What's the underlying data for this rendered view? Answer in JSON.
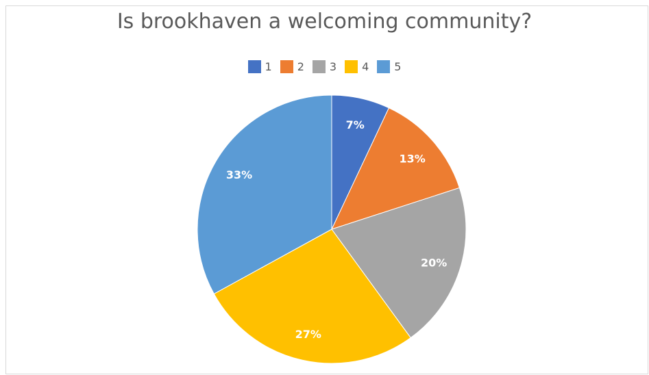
{
  "chart_data": {
    "type": "pie",
    "title": "Is brookhaven a welcoming community?",
    "categories": [
      "1",
      "2",
      "3",
      "4",
      "5"
    ],
    "values": [
      7,
      13,
      20,
      27,
      33
    ],
    "data_labels": [
      "7%",
      "13%",
      "20%",
      "27%",
      "33%"
    ],
    "colors": [
      "#4472c4",
      "#ed7d31",
      "#a5a5a5",
      "#ffc000",
      "#5b9bd5"
    ],
    "legend_position": "top"
  }
}
